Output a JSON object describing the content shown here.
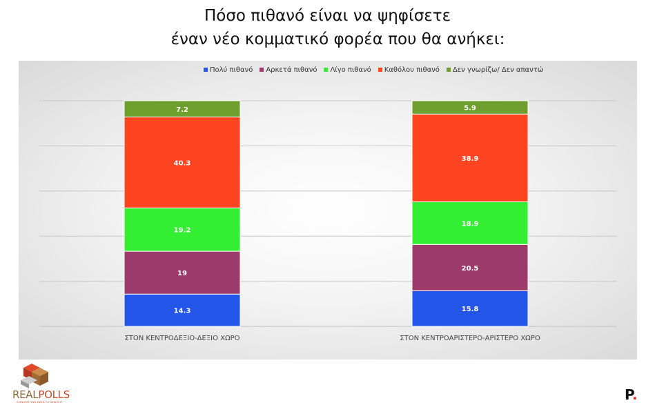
{
  "title": {
    "line1": "Πόσο πιθανό είναι να ψηφίσετε",
    "line2": "έναν νέο κομματικό φορέα που θα ανήκει:"
  },
  "chart_data": {
    "type": "bar",
    "stacked": true,
    "categories": [
      "ΣΤΟΝ ΚΕΝΤΡΟΔΕΞΙΟ-ΔΕΞΙΟ ΧΩΡΟ",
      "ΣΤΟΝ ΚΕΝΤΡΟΑΡΙΣΤΕΡΟ-ΑΡΙΣΤΕΡΟ ΧΩΡΟ"
    ],
    "series": [
      {
        "name": "Πολύ πιθανό",
        "color": "#2255e8",
        "values": [
          14.3,
          15.8
        ],
        "labels": [
          "14.3",
          "15.8"
        ]
      },
      {
        "name": "Αρκετά πιθανό",
        "color": "#9b3a6b",
        "values": [
          19,
          20.5
        ],
        "labels": [
          "19",
          "20.5"
        ]
      },
      {
        "name": "Λίγο πιθανό",
        "color": "#33ee33",
        "values": [
          19.2,
          18.9
        ],
        "labels": [
          "19.2",
          "18.9"
        ]
      },
      {
        "name": "Καθόλου πιθανό",
        "color": "#ff4422",
        "values": [
          40.3,
          38.9
        ],
        "labels": [
          "40.3",
          "38.9"
        ]
      },
      {
        "name": "Δεν γνωρίζω/ Δεν απαντώ",
        "color": "#6e9e2e",
        "values": [
          7.2,
          5.9
        ],
        "labels": [
          "7.2",
          "5.9"
        ]
      }
    ],
    "ylim": [
      0,
      100
    ],
    "grid": true,
    "legend_position": "top"
  },
  "logos": {
    "left_brand_a": "REAL",
    "left_brand_b": "POLLS",
    "left_tagline": "CONVERTING DATA TO INSIGHT",
    "right_brand": "P",
    "right_dot": "."
  }
}
